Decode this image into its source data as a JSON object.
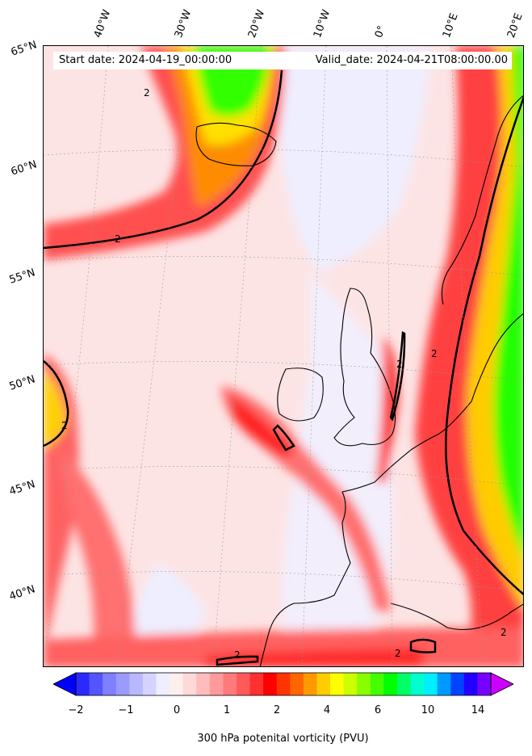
{
  "header": {
    "start_date": "Start date: 2024-04-19_00:00:00",
    "valid_date": "Valid_date: 2024-04-21T08:00:00.00"
  },
  "longitude_labels": [
    "40°W",
    "30°W",
    "20°W",
    "10°W",
    "0°",
    "10°E",
    "20°E"
  ],
  "latitude_labels": [
    "65°N",
    "60°N",
    "55°N",
    "50°N",
    "45°N",
    "40°N"
  ],
  "contour_label": "2",
  "colorbar": {
    "label": "300 hPa potenital vorticity (PVU)",
    "ticks": [
      "−2",
      "−1",
      "0",
      "1",
      "2",
      "4",
      "6",
      "10",
      "14"
    ],
    "colors": [
      "#0000ff",
      "#2a2aff",
      "#5555ff",
      "#7f7fff",
      "#9a9aff",
      "#b8b8ff",
      "#d4d4ff",
      "#eeeeff",
      "#ffeeee",
      "#ffd8d8",
      "#ffbcbc",
      "#ff9a9a",
      "#ff7a7a",
      "#ff5a5a",
      "#ff3030",
      "#ff0000",
      "#ff3300",
      "#ff6600",
      "#ff9900",
      "#ffcc00",
      "#ffff00",
      "#ccff00",
      "#88ff00",
      "#44ff00",
      "#00ff00",
      "#00ff66",
      "#00ffcc",
      "#00eeff",
      "#0099ff",
      "#0044ff",
      "#2200ff",
      "#7700ff",
      "#cc00ff"
    ]
  }
}
